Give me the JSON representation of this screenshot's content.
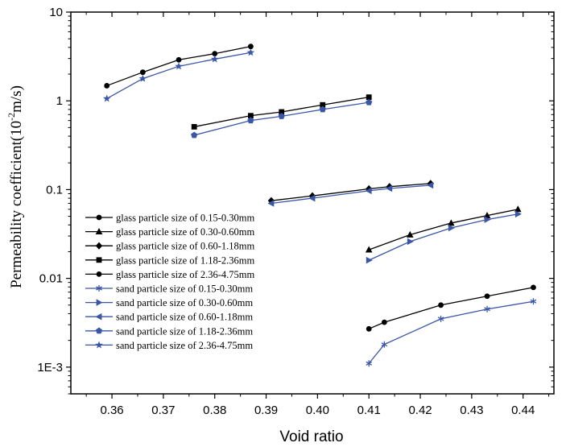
{
  "chart_data": {
    "type": "line",
    "title": "",
    "xlabel": "Void ratio",
    "ylabel": "Permeability coefficient(10",
    "ylabel_sup": "-2",
    "ylabel_unit": "m/s)",
    "xlim": [
      0.352,
      0.446
    ],
    "ylim": [
      0.0005,
      10
    ],
    "yscale": "log",
    "x_ticks": [
      "0.36",
      "0.37",
      "0.38",
      "0.39",
      "0.40",
      "0.41",
      "0.42",
      "0.43",
      "0.44"
    ],
    "y_ticks": [
      "1E-3",
      "0.01",
      "0.1",
      "1",
      "10"
    ],
    "grid": false,
    "legend_position": "lower-left",
    "series": [
      {
        "name": "glass particle size of 0.15-0.30mm",
        "marker": "circle",
        "color": "#000000",
        "x": [
          0.41,
          0.413,
          0.424,
          0.433,
          0.442
        ],
        "y": [
          0.0027,
          0.0032,
          0.005,
          0.0063,
          0.0079
        ]
      },
      {
        "name": "glass particle size of 0.30-0.60mm",
        "marker": "triangle-up",
        "color": "#000000",
        "x": [
          0.41,
          0.418,
          0.426,
          0.433,
          0.439
        ],
        "y": [
          0.021,
          0.031,
          0.042,
          0.051,
          0.06
        ]
      },
      {
        "name": "glass particle size of 0.60-1.18mm",
        "marker": "diamond",
        "color": "#000000",
        "x": [
          0.391,
          0.399,
          0.41,
          0.414,
          0.422
        ],
        "y": [
          0.075,
          0.085,
          0.102,
          0.108,
          0.117
        ]
      },
      {
        "name": "glass particle size of 1.18-2.36mm",
        "marker": "square",
        "color": "#000000",
        "x": [
          0.376,
          0.387,
          0.393,
          0.401,
          0.41
        ],
        "y": [
          0.51,
          0.68,
          0.75,
          0.9,
          1.1
        ]
      },
      {
        "name": "glass particle size of 2.36-4.75mm",
        "marker": "circle",
        "color": "#000000",
        "x": [
          0.359,
          0.366,
          0.373,
          0.38,
          0.387
        ],
        "y": [
          1.48,
          2.1,
          2.9,
          3.4,
          4.1
        ]
      },
      {
        "name": "sand particle size of 0.15-0.30mm",
        "marker": "asterisk",
        "color": "#3a57a7",
        "x": [
          0.41,
          0.413,
          0.424,
          0.433,
          0.442
        ],
        "y": [
          0.0011,
          0.0018,
          0.0035,
          0.0045,
          0.0055
        ]
      },
      {
        "name": "sand particle size of 0.30-0.60mm",
        "marker": "triangle-right",
        "color": "#3a57a7",
        "x": [
          0.41,
          0.418,
          0.426,
          0.433,
          0.439
        ],
        "y": [
          0.016,
          0.026,
          0.037,
          0.046,
          0.053
        ]
      },
      {
        "name": "sand particle size of 0.60-1.18mm",
        "marker": "triangle-left",
        "color": "#3a57a7",
        "x": [
          0.391,
          0.399,
          0.41,
          0.414,
          0.422
        ],
        "y": [
          0.07,
          0.08,
          0.097,
          0.103,
          0.112
        ]
      },
      {
        "name": "sand particle size of 1.18-2.36mm",
        "marker": "pentagon",
        "color": "#3a57a7",
        "x": [
          0.376,
          0.387,
          0.393,
          0.401,
          0.41
        ],
        "y": [
          0.41,
          0.6,
          0.67,
          0.8,
          0.96
        ]
      },
      {
        "name": "sand particle size of 2.36-4.75mm",
        "marker": "star",
        "color": "#3a57a7",
        "x": [
          0.359,
          0.366,
          0.373,
          0.38,
          0.387
        ],
        "y": [
          1.06,
          1.78,
          2.45,
          2.95,
          3.5
        ]
      }
    ]
  }
}
